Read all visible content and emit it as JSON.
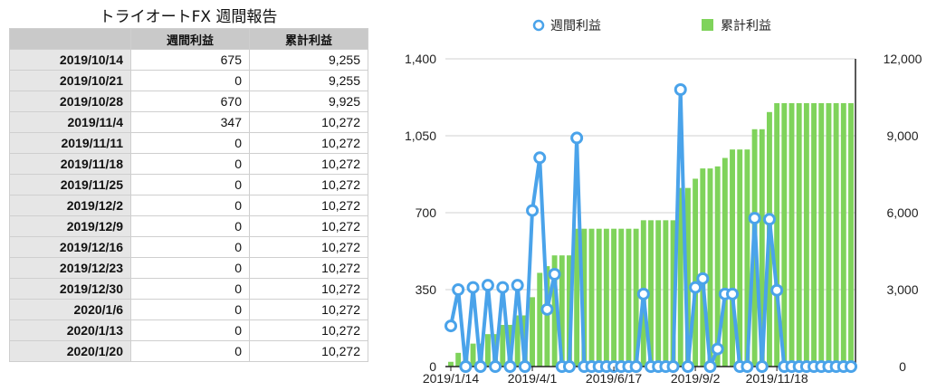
{
  "table": {
    "title": "トライオートFX 週間報告",
    "headers": [
      "",
      "週間利益",
      "累計利益"
    ],
    "rows": [
      {
        "date": "2019/10/14",
        "weekly": "675",
        "cumulative": "9,255"
      },
      {
        "date": "2019/10/21",
        "weekly": "0",
        "cumulative": "9,255"
      },
      {
        "date": "2019/10/28",
        "weekly": "670",
        "cumulative": "9,925"
      },
      {
        "date": "2019/11/4",
        "weekly": "347",
        "cumulative": "10,272"
      },
      {
        "date": "2019/11/11",
        "weekly": "0",
        "cumulative": "10,272"
      },
      {
        "date": "2019/11/18",
        "weekly": "0",
        "cumulative": "10,272"
      },
      {
        "date": "2019/11/25",
        "weekly": "0",
        "cumulative": "10,272"
      },
      {
        "date": "2019/12/2",
        "weekly": "0",
        "cumulative": "10,272"
      },
      {
        "date": "2019/12/9",
        "weekly": "0",
        "cumulative": "10,272"
      },
      {
        "date": "2019/12/16",
        "weekly": "0",
        "cumulative": "10,272"
      },
      {
        "date": "2019/12/23",
        "weekly": "0",
        "cumulative": "10,272"
      },
      {
        "date": "2019/12/30",
        "weekly": "0",
        "cumulative": "10,272"
      },
      {
        "date": "2020/1/6",
        "weekly": "0",
        "cumulative": "10,272"
      },
      {
        "date": "2020/1/13",
        "weekly": "0",
        "cumulative": "10,272"
      },
      {
        "date": "2020/1/20",
        "weekly": "0",
        "cumulative": "10,272"
      }
    ]
  },
  "chart_data": {
    "type": "bar",
    "legend_placement": "top",
    "grid": true,
    "x_tick_labels": [
      "2019/1/14",
      "2019/4/1",
      "2019/6/17",
      "2019/9/2",
      "2019/11/18"
    ],
    "y_left": {
      "ticks": [
        "0",
        "350",
        "700",
        "1,050",
        "1,400"
      ],
      "range": [
        0,
        1400
      ]
    },
    "y_right": {
      "ticks": [
        "0",
        "3,000",
        "6,000",
        "9,000",
        "12,000"
      ],
      "range": [
        0,
        12000
      ]
    },
    "colors": {
      "line": "#4aa3ea",
      "bar": "#7fd35b",
      "grid": "#d0d0d0",
      "axis": "#222222"
    },
    "series": [
      {
        "name": "週間利益",
        "kind": "line",
        "axis": "left",
        "values": [
          185,
          350,
          0,
          360,
          0,
          370,
          0,
          360,
          0,
          370,
          0,
          710,
          950,
          260,
          420,
          0,
          0,
          1040,
          0,
          0,
          0,
          0,
          0,
          0,
          0,
          0,
          330,
          0,
          0,
          0,
          0,
          1260,
          0,
          360,
          400,
          0,
          80,
          330,
          330,
          0,
          0,
          675,
          0,
          670,
          347,
          0,
          0,
          0,
          0,
          0,
          0,
          0,
          0,
          0,
          0
        ]
      },
      {
        "name": "累計利益",
        "kind": "bar",
        "axis": "right",
        "values": [
          185,
          535,
          535,
          895,
          895,
          1265,
          1265,
          1625,
          1625,
          1995,
          1995,
          2705,
          3655,
          3915,
          4335,
          4335,
          4335,
          5375,
          5375,
          5375,
          5375,
          5375,
          5375,
          5375,
          5375,
          5375,
          5705,
          5705,
          5705,
          5705,
          5705,
          6965,
          6965,
          7325,
          7725,
          7725,
          7805,
          8135,
          8465,
          8465,
          8465,
          9255,
          9255,
          9925,
          10272,
          10272,
          10272,
          10272,
          10272,
          10272,
          10272,
          10272,
          10272,
          10272,
          10272
        ]
      }
    ]
  }
}
